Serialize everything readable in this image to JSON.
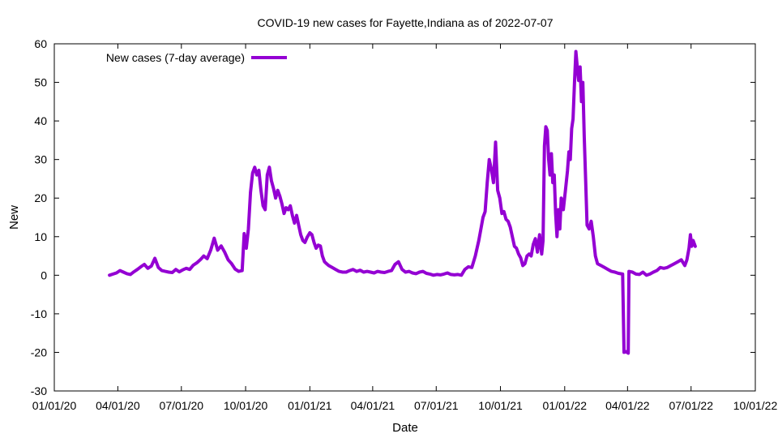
{
  "chart_data": {
    "type": "line",
    "title": "COVID-19 new cases for Fayette,Indiana as of 2022-07-07",
    "xlabel": "Date",
    "ylabel": "New",
    "xlim": [
      "2020-01-01",
      "2022-10-01"
    ],
    "ylim": [
      -30,
      60
    ],
    "x_ticks": [
      "01/01/20",
      "04/01/20",
      "07/01/20",
      "10/01/20",
      "01/01/21",
      "04/01/21",
      "07/01/21",
      "10/01/21",
      "01/01/22",
      "04/01/22",
      "07/01/22",
      "10/01/22"
    ],
    "x_tick_dates": [
      "2020-01-01",
      "2020-04-01",
      "2020-07-01",
      "2020-10-01",
      "2021-01-01",
      "2021-04-01",
      "2021-07-01",
      "2021-10-01",
      "2022-01-01",
      "2022-04-01",
      "2022-07-01",
      "2022-10-01"
    ],
    "y_ticks": [
      -30,
      -20,
      -10,
      0,
      10,
      20,
      30,
      40,
      50,
      60
    ],
    "grid": false,
    "legend_position": "top-left",
    "series": [
      {
        "name": "New cases (7-day average)",
        "color": "#9400d3",
        "points": [
          [
            "2020-03-20",
            0
          ],
          [
            "2020-03-25",
            0.3
          ],
          [
            "2020-03-30",
            0.6
          ],
          [
            "2020-04-04",
            1.2
          ],
          [
            "2020-04-09",
            0.8
          ],
          [
            "2020-04-14",
            0.4
          ],
          [
            "2020-04-19",
            0.2
          ],
          [
            "2020-04-24",
            0.9
          ],
          [
            "2020-04-29",
            1.5
          ],
          [
            "2020-05-04",
            2.2
          ],
          [
            "2020-05-09",
            2.8
          ],
          [
            "2020-05-14",
            1.8
          ],
          [
            "2020-05-19",
            2.4
          ],
          [
            "2020-05-24",
            4.4
          ],
          [
            "2020-05-29",
            2.0
          ],
          [
            "2020-06-03",
            1.2
          ],
          [
            "2020-06-08",
            1.0
          ],
          [
            "2020-06-13",
            0.8
          ],
          [
            "2020-06-18",
            0.7
          ],
          [
            "2020-06-23",
            1.5
          ],
          [
            "2020-06-28",
            0.9
          ],
          [
            "2020-07-03",
            1.4
          ],
          [
            "2020-07-08",
            1.8
          ],
          [
            "2020-07-13",
            1.5
          ],
          [
            "2020-07-18",
            2.6
          ],
          [
            "2020-07-23",
            3.2
          ],
          [
            "2020-07-28",
            4.0
          ],
          [
            "2020-08-02",
            5.0
          ],
          [
            "2020-08-07",
            4.3
          ],
          [
            "2020-08-12",
            6.5
          ],
          [
            "2020-08-17",
            9.6
          ],
          [
            "2020-08-22",
            6.5
          ],
          [
            "2020-08-27",
            7.6
          ],
          [
            "2020-09-01",
            6.0
          ],
          [
            "2020-09-06",
            4.0
          ],
          [
            "2020-09-11",
            3.0
          ],
          [
            "2020-09-16",
            1.6
          ],
          [
            "2020-09-21",
            1.0
          ],
          [
            "2020-09-26",
            1.2
          ],
          [
            "2020-09-29",
            10.8
          ],
          [
            "2020-10-02",
            7.0
          ],
          [
            "2020-10-05",
            12.0
          ],
          [
            "2020-10-08",
            21.5
          ],
          [
            "2020-10-11",
            26.5
          ],
          [
            "2020-10-14",
            28.0
          ],
          [
            "2020-10-17",
            26.0
          ],
          [
            "2020-10-20",
            27.2
          ],
          [
            "2020-10-23",
            22.0
          ],
          [
            "2020-10-26",
            18.0
          ],
          [
            "2020-10-29",
            17.0
          ],
          [
            "2020-11-01",
            26.0
          ],
          [
            "2020-11-04",
            28.0
          ],
          [
            "2020-11-07",
            24.5
          ],
          [
            "2020-11-10",
            22.5
          ],
          [
            "2020-11-13",
            20.0
          ],
          [
            "2020-11-16",
            22.0
          ],
          [
            "2020-11-19",
            20.5
          ],
          [
            "2020-11-22",
            18.5
          ],
          [
            "2020-11-25",
            16.0
          ],
          [
            "2020-11-28",
            17.5
          ],
          [
            "2020-12-01",
            17.0
          ],
          [
            "2020-12-04",
            18.0
          ],
          [
            "2020-12-07",
            15.5
          ],
          [
            "2020-12-10",
            13.5
          ],
          [
            "2020-12-13",
            15.5
          ],
          [
            "2020-12-16",
            13.0
          ],
          [
            "2020-12-19",
            10.5
          ],
          [
            "2020-12-22",
            9.0
          ],
          [
            "2020-12-25",
            8.5
          ],
          [
            "2020-12-28",
            9.8
          ],
          [
            "2021-01-01",
            11.0
          ],
          [
            "2021-01-04",
            10.5
          ],
          [
            "2021-01-07",
            8.5
          ],
          [
            "2021-01-10",
            7.0
          ],
          [
            "2021-01-13",
            7.8
          ],
          [
            "2021-01-16",
            7.6
          ],
          [
            "2021-01-19",
            5.0
          ],
          [
            "2021-01-22",
            3.5
          ],
          [
            "2021-01-25",
            3.0
          ],
          [
            "2021-01-28",
            2.5
          ],
          [
            "2021-02-02",
            2.0
          ],
          [
            "2021-02-07",
            1.5
          ],
          [
            "2021-02-12",
            1.0
          ],
          [
            "2021-02-17",
            0.8
          ],
          [
            "2021-02-22",
            0.8
          ],
          [
            "2021-02-27",
            1.2
          ],
          [
            "2021-03-04",
            1.5
          ],
          [
            "2021-03-09",
            1.0
          ],
          [
            "2021-03-14",
            1.3
          ],
          [
            "2021-03-19",
            0.8
          ],
          [
            "2021-03-24",
            1.0
          ],
          [
            "2021-03-29",
            0.8
          ],
          [
            "2021-04-03",
            0.6
          ],
          [
            "2021-04-08",
            1.0
          ],
          [
            "2021-04-13",
            0.8
          ],
          [
            "2021-04-18",
            0.7
          ],
          [
            "2021-04-23",
            1.0
          ],
          [
            "2021-04-28",
            1.2
          ],
          [
            "2021-05-03",
            2.8
          ],
          [
            "2021-05-08",
            3.5
          ],
          [
            "2021-05-13",
            1.5
          ],
          [
            "2021-05-18",
            0.8
          ],
          [
            "2021-05-23",
            1.0
          ],
          [
            "2021-05-28",
            0.6
          ],
          [
            "2021-06-02",
            0.4
          ],
          [
            "2021-06-07",
            0.8
          ],
          [
            "2021-06-12",
            1.0
          ],
          [
            "2021-06-17",
            0.5
          ],
          [
            "2021-06-22",
            0.3
          ],
          [
            "2021-06-27",
            0.0
          ],
          [
            "2021-07-02",
            0.2
          ],
          [
            "2021-07-07",
            0.1
          ],
          [
            "2021-07-12",
            0.3
          ],
          [
            "2021-07-17",
            0.6
          ],
          [
            "2021-07-22",
            0.2
          ],
          [
            "2021-07-27",
            0.1
          ],
          [
            "2021-08-01",
            0.2
          ],
          [
            "2021-08-06",
            0.0
          ],
          [
            "2021-08-11",
            1.5
          ],
          [
            "2021-08-16",
            2.2
          ],
          [
            "2021-08-21",
            2.0
          ],
          [
            "2021-08-26",
            5.0
          ],
          [
            "2021-08-31",
            9.0
          ],
          [
            "2021-09-03",
            12.0
          ],
          [
            "2021-09-06",
            15.0
          ],
          [
            "2021-09-09",
            16.5
          ],
          [
            "2021-09-12",
            24.0
          ],
          [
            "2021-09-15",
            30.0
          ],
          [
            "2021-09-18",
            27.5
          ],
          [
            "2021-09-21",
            24.0
          ],
          [
            "2021-09-24",
            34.5
          ],
          [
            "2021-09-27",
            22.0
          ],
          [
            "2021-09-30",
            20.0
          ],
          [
            "2021-10-03",
            16.0
          ],
          [
            "2021-10-06",
            16.5
          ],
          [
            "2021-10-09",
            14.5
          ],
          [
            "2021-10-12",
            14.0
          ],
          [
            "2021-10-15",
            12.5
          ],
          [
            "2021-10-18",
            10.0
          ],
          [
            "2021-10-21",
            7.5
          ],
          [
            "2021-10-24",
            7.0
          ],
          [
            "2021-10-27",
            5.5
          ],
          [
            "2021-10-30",
            4.5
          ],
          [
            "2021-11-02",
            2.5
          ],
          [
            "2021-11-05",
            3.0
          ],
          [
            "2021-11-08",
            5.0
          ],
          [
            "2021-11-11",
            5.5
          ],
          [
            "2021-11-14",
            5.0
          ],
          [
            "2021-11-17",
            8.0
          ],
          [
            "2021-11-20",
            9.5
          ],
          [
            "2021-11-23",
            6.0
          ],
          [
            "2021-11-26",
            10.5
          ],
          [
            "2021-11-29",
            5.5
          ],
          [
            "2021-12-01",
            9.0
          ],
          [
            "2021-12-03",
            33.5
          ],
          [
            "2021-12-05",
            38.5
          ],
          [
            "2021-12-07",
            37.5
          ],
          [
            "2021-12-09",
            30.0
          ],
          [
            "2021-12-11",
            26.0
          ],
          [
            "2021-12-13",
            31.5
          ],
          [
            "2021-12-15",
            24.0
          ],
          [
            "2021-12-17",
            26.0
          ],
          [
            "2021-12-19",
            16.0
          ],
          [
            "2021-12-21",
            10.0
          ],
          [
            "2021-12-23",
            17.0
          ],
          [
            "2021-12-25",
            12.0
          ],
          [
            "2021-12-27",
            20.0
          ],
          [
            "2021-12-30",
            17.0
          ],
          [
            "2022-01-02",
            22.0
          ],
          [
            "2022-01-05",
            27.0
          ],
          [
            "2022-01-07",
            32.0
          ],
          [
            "2022-01-09",
            30.0
          ],
          [
            "2022-01-11",
            38.0
          ],
          [
            "2022-01-13",
            40.5
          ],
          [
            "2022-01-15",
            50.0
          ],
          [
            "2022-01-17",
            58.0
          ],
          [
            "2022-01-19",
            54.0
          ],
          [
            "2022-01-21",
            50.5
          ],
          [
            "2022-01-23",
            54.0
          ],
          [
            "2022-01-25",
            45.0
          ],
          [
            "2022-01-27",
            50.0
          ],
          [
            "2022-01-29",
            36.0
          ],
          [
            "2022-01-31",
            25.0
          ],
          [
            "2022-02-02",
            13.0
          ],
          [
            "2022-02-05",
            12.0
          ],
          [
            "2022-02-08",
            14.0
          ],
          [
            "2022-02-11",
            10.0
          ],
          [
            "2022-02-14",
            5.0
          ],
          [
            "2022-02-17",
            3.0
          ],
          [
            "2022-02-22",
            2.5
          ],
          [
            "2022-02-27",
            2.0
          ],
          [
            "2022-03-04",
            1.5
          ],
          [
            "2022-03-09",
            1.0
          ],
          [
            "2022-03-14",
            0.8
          ],
          [
            "2022-03-19",
            0.5
          ],
          [
            "2022-03-25",
            0.3
          ],
          [
            "2022-03-27",
            -20.0
          ],
          [
            "2022-03-30",
            -19.8
          ],
          [
            "2022-04-02",
            -20.2
          ],
          [
            "2022-04-03",
            1.0
          ],
          [
            "2022-04-08",
            0.8
          ],
          [
            "2022-04-13",
            0.3
          ],
          [
            "2022-04-18",
            0.2
          ],
          [
            "2022-04-23",
            0.8
          ],
          [
            "2022-04-28",
            0.0
          ],
          [
            "2022-05-03",
            0.3
          ],
          [
            "2022-05-08",
            0.8
          ],
          [
            "2022-05-13",
            1.2
          ],
          [
            "2022-05-18",
            2.0
          ],
          [
            "2022-05-23",
            1.8
          ],
          [
            "2022-05-28",
            2.0
          ],
          [
            "2022-06-02",
            2.5
          ],
          [
            "2022-06-07",
            3.0
          ],
          [
            "2022-06-12",
            3.5
          ],
          [
            "2022-06-17",
            4.0
          ],
          [
            "2022-06-22",
            2.5
          ],
          [
            "2022-06-25",
            4.0
          ],
          [
            "2022-06-28",
            7.0
          ],
          [
            "2022-06-30",
            10.5
          ],
          [
            "2022-07-02",
            7.5
          ],
          [
            "2022-07-04",
            9.0
          ],
          [
            "2022-07-07",
            7.5
          ]
        ]
      }
    ]
  }
}
